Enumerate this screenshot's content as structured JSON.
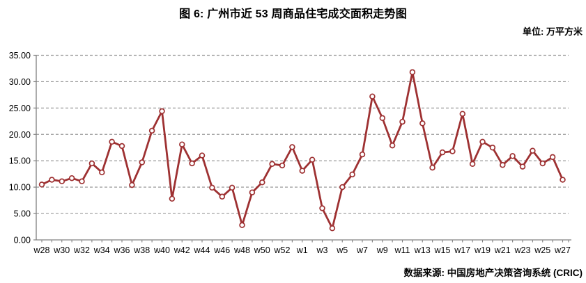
{
  "chart_data": {
    "type": "line",
    "title": "图 6: 广州市近 53 周商品住宅成交面积走势图",
    "unit_label": "单位: 万平方米",
    "source_label": "数据来源: 中国房地产决策咨询系统 (CRIC)",
    "xlabel": "",
    "ylabel": "",
    "x": [
      "w28",
      "w29",
      "w30",
      "w31",
      "w32",
      "w33",
      "w34",
      "w35",
      "w36",
      "w37",
      "w38",
      "w39",
      "w40",
      "w41",
      "w42",
      "w43",
      "w44",
      "w45",
      "w46",
      "w47",
      "w48",
      "w49",
      "w50",
      "w51",
      "w52",
      "w53",
      "w1",
      "w2",
      "w3",
      "w4",
      "w5",
      "w6",
      "w7",
      "w8",
      "w9",
      "w10",
      "w11",
      "w12",
      "w13",
      "w14",
      "w15",
      "w16",
      "w17",
      "w18",
      "w19",
      "w20",
      "w21",
      "w22",
      "w23",
      "w24",
      "w25",
      "w26",
      "w27"
    ],
    "values": [
      10.5,
      11.4,
      11.1,
      11.7,
      11.1,
      14.5,
      12.8,
      18.6,
      17.8,
      10.4,
      14.7,
      20.7,
      24.4,
      7.8,
      18.1,
      14.5,
      16.0,
      9.9,
      8.2,
      9.9,
      2.8,
      9.0,
      10.9,
      14.4,
      14.1,
      17.6,
      13.1,
      15.2,
      6.0,
      2.2,
      10.0,
      12.4,
      16.2,
      27.2,
      23.1,
      17.9,
      22.4,
      31.8,
      22.1,
      13.7,
      16.6,
      16.8,
      23.9,
      14.4,
      18.6,
      17.5,
      14.2,
      15.9,
      13.9,
      16.9,
      14.5,
      15.7,
      11.4
    ],
    "x_tick_labels": [
      "w28",
      "w30",
      "w32",
      "w34",
      "w36",
      "w38",
      "w40",
      "w42",
      "w44",
      "w46",
      "w48",
      "w50",
      "w52",
      "w1",
      "w3",
      "w5",
      "w7",
      "w9",
      "w11",
      "w13",
      "w15",
      "w17",
      "w19",
      "w21",
      "w23",
      "w25",
      "w27"
    ],
    "x_label_every": 2,
    "ylim": [
      0,
      35
    ],
    "ytick_step": 5,
    "ytick_labels": [
      "0.00",
      "5.00",
      "10.00",
      "15.00",
      "20.00",
      "25.00",
      "30.00",
      "35.00"
    ],
    "grid": "horizontal-dashed",
    "legend": "none",
    "line_color": "#9E3132",
    "marker": "circle-open",
    "marker_fill": "#FFFFFF",
    "grid_color": "#999999",
    "axis_color": "#808080",
    "text_color": "#000000"
  }
}
